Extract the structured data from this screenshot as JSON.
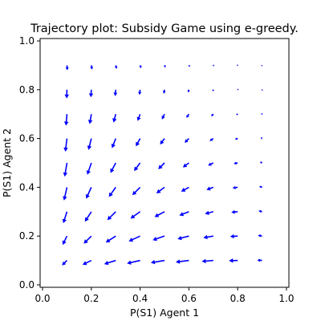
{
  "chart_data": {
    "type": "quiver",
    "title": "Trajectory plot: Subsidy Game using e-greedy.",
    "xlabel": "P(S1) Agent 1",
    "ylabel": "P(S1) Agent 2",
    "xlim": [
      -0.01,
      1.01
    ],
    "ylim": [
      -0.01,
      1.01
    ],
    "xticks": [
      "0.0",
      "0.2",
      "0.4",
      "0.6",
      "0.8",
      "1.0"
    ],
    "yticks": [
      "0.0",
      "0.2",
      "0.4",
      "0.6",
      "0.8",
      "1.0"
    ],
    "tick_values": [
      0.0,
      0.2,
      0.4,
      0.6,
      0.8,
      1.0
    ],
    "arrow_color": "#0000ff",
    "grid": false,
    "grid_points": [
      0.1,
      0.2,
      0.3,
      0.4,
      0.5,
      0.6,
      0.7,
      0.8,
      0.9
    ]
  }
}
